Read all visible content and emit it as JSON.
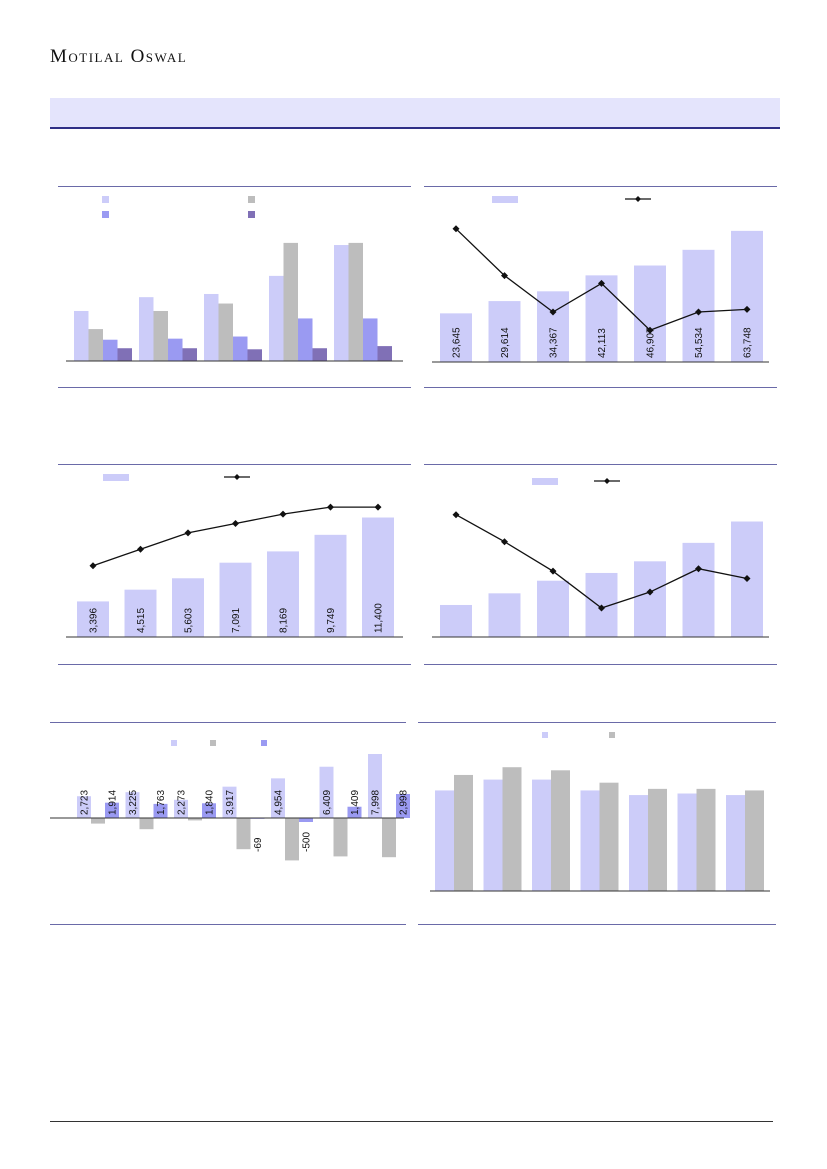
{
  "header": {
    "brand": "Motilal Oswal"
  },
  "colors": {
    "lavender": "#ccccf9",
    "grey": "#bdbdbd",
    "blue": "#9a9af2",
    "purple": "#8070b6",
    "line": "#111111",
    "axis": "#333333"
  },
  "chart_data": [
    {
      "id": "chart1",
      "type": "bar",
      "series": [
        {
          "values": [
            47,
            60,
            63,
            80,
            109
          ]
        },
        {
          "values": [
            30,
            47,
            54,
            111,
            111
          ]
        },
        {
          "values": [
            20,
            21,
            23,
            40,
            40
          ]
        },
        {
          "values": [
            12,
            12,
            11,
            12,
            14
          ]
        }
      ],
      "ylim": [
        0,
        125
      ]
    },
    {
      "id": "chart2",
      "type": "bar+line",
      "values": [
        23645,
        29614,
        34367,
        42113,
        46907,
        54534,
        63748
      ],
      "value_labels": [
        "23,645",
        "29,614",
        "34,367",
        "42,113",
        "46,907",
        "54,534",
        "63,748"
      ],
      "line": [
        92,
        74,
        60,
        71,
        53,
        60,
        61
      ],
      "ylim": [
        0,
        70000
      ],
      "line_range": [
        40,
        100
      ]
    },
    {
      "id": "chart3",
      "type": "bar+line",
      "values": [
        3396,
        4515,
        5603,
        7091,
        8169,
        9749,
        11400
      ],
      "value_labels": [
        "3,396",
        "4,515",
        "5,603",
        "7,091",
        "8,169",
        "9,749",
        "11,400"
      ],
      "line": [
        96,
        103,
        110,
        114,
        118,
        121,
        121
      ],
      "ylim": [
        0,
        12500
      ],
      "line_range": [
        40,
        130
      ]
    },
    {
      "id": "chart4",
      "type": "bar+line",
      "values": [
        33,
        45,
        58,
        66,
        78,
        97,
        119
      ],
      "line": [
        98,
        76,
        52,
        22,
        35,
        54,
        46
      ],
      "ylim": [
        0,
        135
      ],
      "line_range": [
        0,
        110
      ]
    },
    {
      "id": "chart5",
      "type": "bar",
      "series": [
        {
          "values": [
            2723,
            3225,
            2273,
            3917,
            4954,
            6409,
            7998
          ],
          "labels": [
            "2,723",
            "3,225",
            "2,273",
            "3,917",
            "4,954",
            "6,409",
            "7,998"
          ]
        },
        {
          "values": [
            -700,
            -1400,
            -300,
            -3900,
            -5300,
            -4800,
            -4900
          ]
        },
        {
          "values": [
            1914,
            1763,
            1840,
            -69,
            -500,
            1409,
            2998
          ],
          "labels": [
            "1,914",
            "1,763",
            "1,840",
            "-69",
            "-500",
            "1,409",
            "2,998"
          ]
        }
      ],
      "ylim": [
        -7500,
        8500
      ]
    },
    {
      "id": "chart6",
      "type": "bar",
      "series": [
        {
          "values": [
            65,
            72,
            72,
            65,
            62,
            63,
            62
          ]
        },
        {
          "values": [
            75,
            80,
            78,
            70,
            66,
            66,
            65
          ]
        }
      ],
      "ylim": [
        0,
        95
      ]
    }
  ]
}
